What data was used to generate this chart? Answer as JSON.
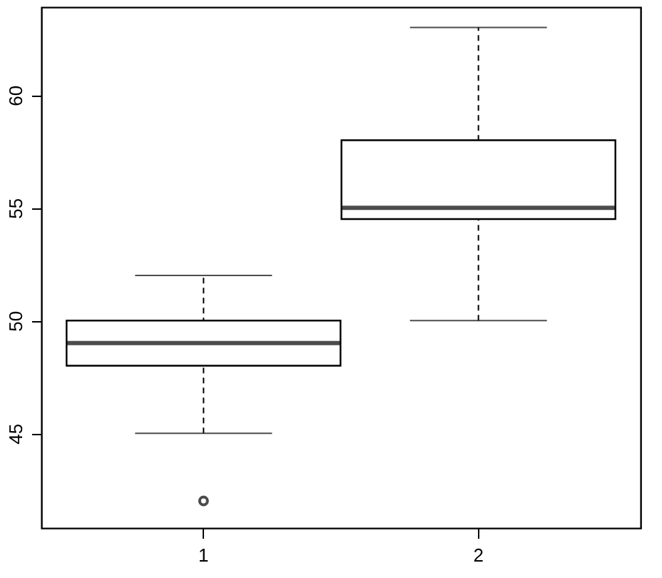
{
  "chart_data": {
    "type": "box",
    "categories": [
      "1",
      "2"
    ],
    "boxes": [
      {
        "low": 45,
        "q1": 48,
        "median": 49,
        "q3": 50,
        "high": 52,
        "outliers": [
          42
        ]
      },
      {
        "low": 50,
        "q1": 54.5,
        "median": 55,
        "q3": 58,
        "high": 63
      }
    ],
    "ylim": [
      40.8,
      63.9
    ],
    "yticks": [
      45,
      50,
      55,
      60
    ]
  }
}
